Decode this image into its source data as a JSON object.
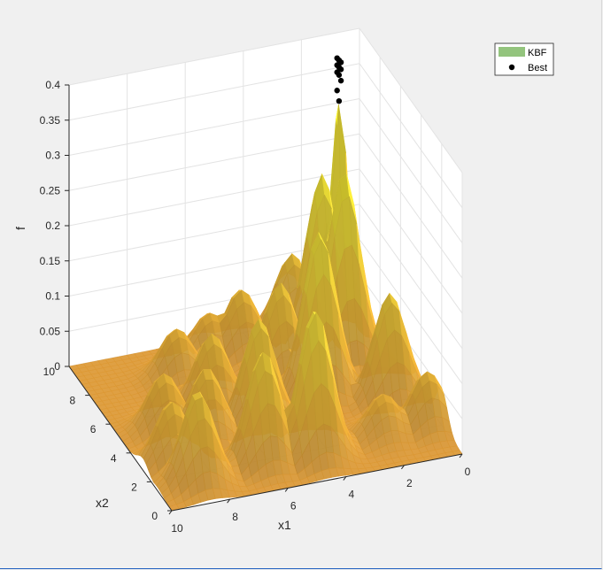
{
  "chart_data": {
    "type": "surface",
    "title": "",
    "xlabel": "x1",
    "ylabel": "x2",
    "zlabel": "f",
    "xlim": [
      0,
      10
    ],
    "ylim": [
      0,
      10
    ],
    "zlim": [
      0,
      0.4
    ],
    "x_ticks": [
      "0",
      "2",
      "4",
      "6",
      "8",
      "10"
    ],
    "y_ticks": [
      "0",
      "2",
      "4",
      "6",
      "8",
      "10"
    ],
    "z_ticks": [
      "0",
      "0.05",
      "0.1",
      "0.15",
      "0.2",
      "0.25",
      "0.3",
      "0.35",
      "0.4"
    ],
    "grid": true,
    "legend": {
      "location": "top-right",
      "entries": [
        {
          "label": "KBF",
          "color": "#93c47d",
          "marker": "patch"
        },
        {
          "label": "Best",
          "color": "#000000",
          "marker": "dot"
        }
      ]
    },
    "series": [
      {
        "name": "KBF",
        "kind": "surface",
        "colors": [
          "#f0a63a",
          "#f7e43c",
          "#ffff20",
          "#c8b884"
        ],
        "peaks": [
          {
            "x1": 1.2,
            "x2": 8.6,
            "z": 0.36
          },
          {
            "x1": 1.6,
            "x2": 7.0,
            "z": 0.27
          },
          {
            "x1": 2.0,
            "x2": 8.0,
            "z": 0.25
          },
          {
            "x1": 4.5,
            "x2": 1.6,
            "z": 0.21
          },
          {
            "x1": 3.0,
            "x2": 5.4,
            "z": 0.23
          },
          {
            "x1": 6.2,
            "x2": 1.8,
            "z": 0.16
          },
          {
            "x1": 5.5,
            "x2": 4.2,
            "z": 0.15
          },
          {
            "x1": 8.6,
            "x2": 1.4,
            "z": 0.13
          },
          {
            "x1": 3.8,
            "x2": 7.0,
            "z": 0.13
          },
          {
            "x1": 7.4,
            "x2": 4.0,
            "z": 0.1
          },
          {
            "x1": 1.0,
            "x2": 4.2,
            "z": 0.15
          },
          {
            "x1": 2.5,
            "x2": 9.5,
            "z": 0.11
          },
          {
            "x1": 6.5,
            "x2": 6.0,
            "z": 0.1
          },
          {
            "x1": 8.5,
            "x2": 5.0,
            "z": 0.08
          },
          {
            "x1": 4.5,
            "x2": 8.8,
            "z": 0.09
          },
          {
            "x1": 9.0,
            "x2": 2.8,
            "z": 0.09
          },
          {
            "x1": 0.5,
            "x2": 2.0,
            "z": 0.08
          },
          {
            "x1": 7.0,
            "x2": 8.0,
            "z": 0.07
          },
          {
            "x1": 5.5,
            "x2": 9.0,
            "z": 0.06
          },
          {
            "x1": 2.0,
            "x2": 2.0,
            "z": 0.06
          }
        ]
      },
      {
        "name": "Best",
        "kind": "scatter3",
        "points": [
          {
            "x1": 1.2,
            "x2": 8.6,
            "z": 0.396
          },
          {
            "x1": 1.2,
            "x2": 8.6,
            "z": 0.393
          },
          {
            "x1": 1.2,
            "x2": 8.6,
            "z": 0.39
          },
          {
            "x1": 1.2,
            "x2": 8.6,
            "z": 0.386
          },
          {
            "x1": 1.2,
            "x2": 8.6,
            "z": 0.383
          },
          {
            "x1": 1.2,
            "x2": 8.6,
            "z": 0.38
          },
          {
            "x1": 1.2,
            "x2": 8.6,
            "z": 0.376
          },
          {
            "x1": 1.2,
            "x2": 8.6,
            "z": 0.372
          },
          {
            "x1": 1.2,
            "x2": 8.6,
            "z": 0.364
          },
          {
            "x1": 1.2,
            "x2": 8.6,
            "z": 0.35
          },
          {
            "x1": 1.2,
            "x2": 8.6,
            "z": 0.335
          }
        ]
      }
    ]
  }
}
